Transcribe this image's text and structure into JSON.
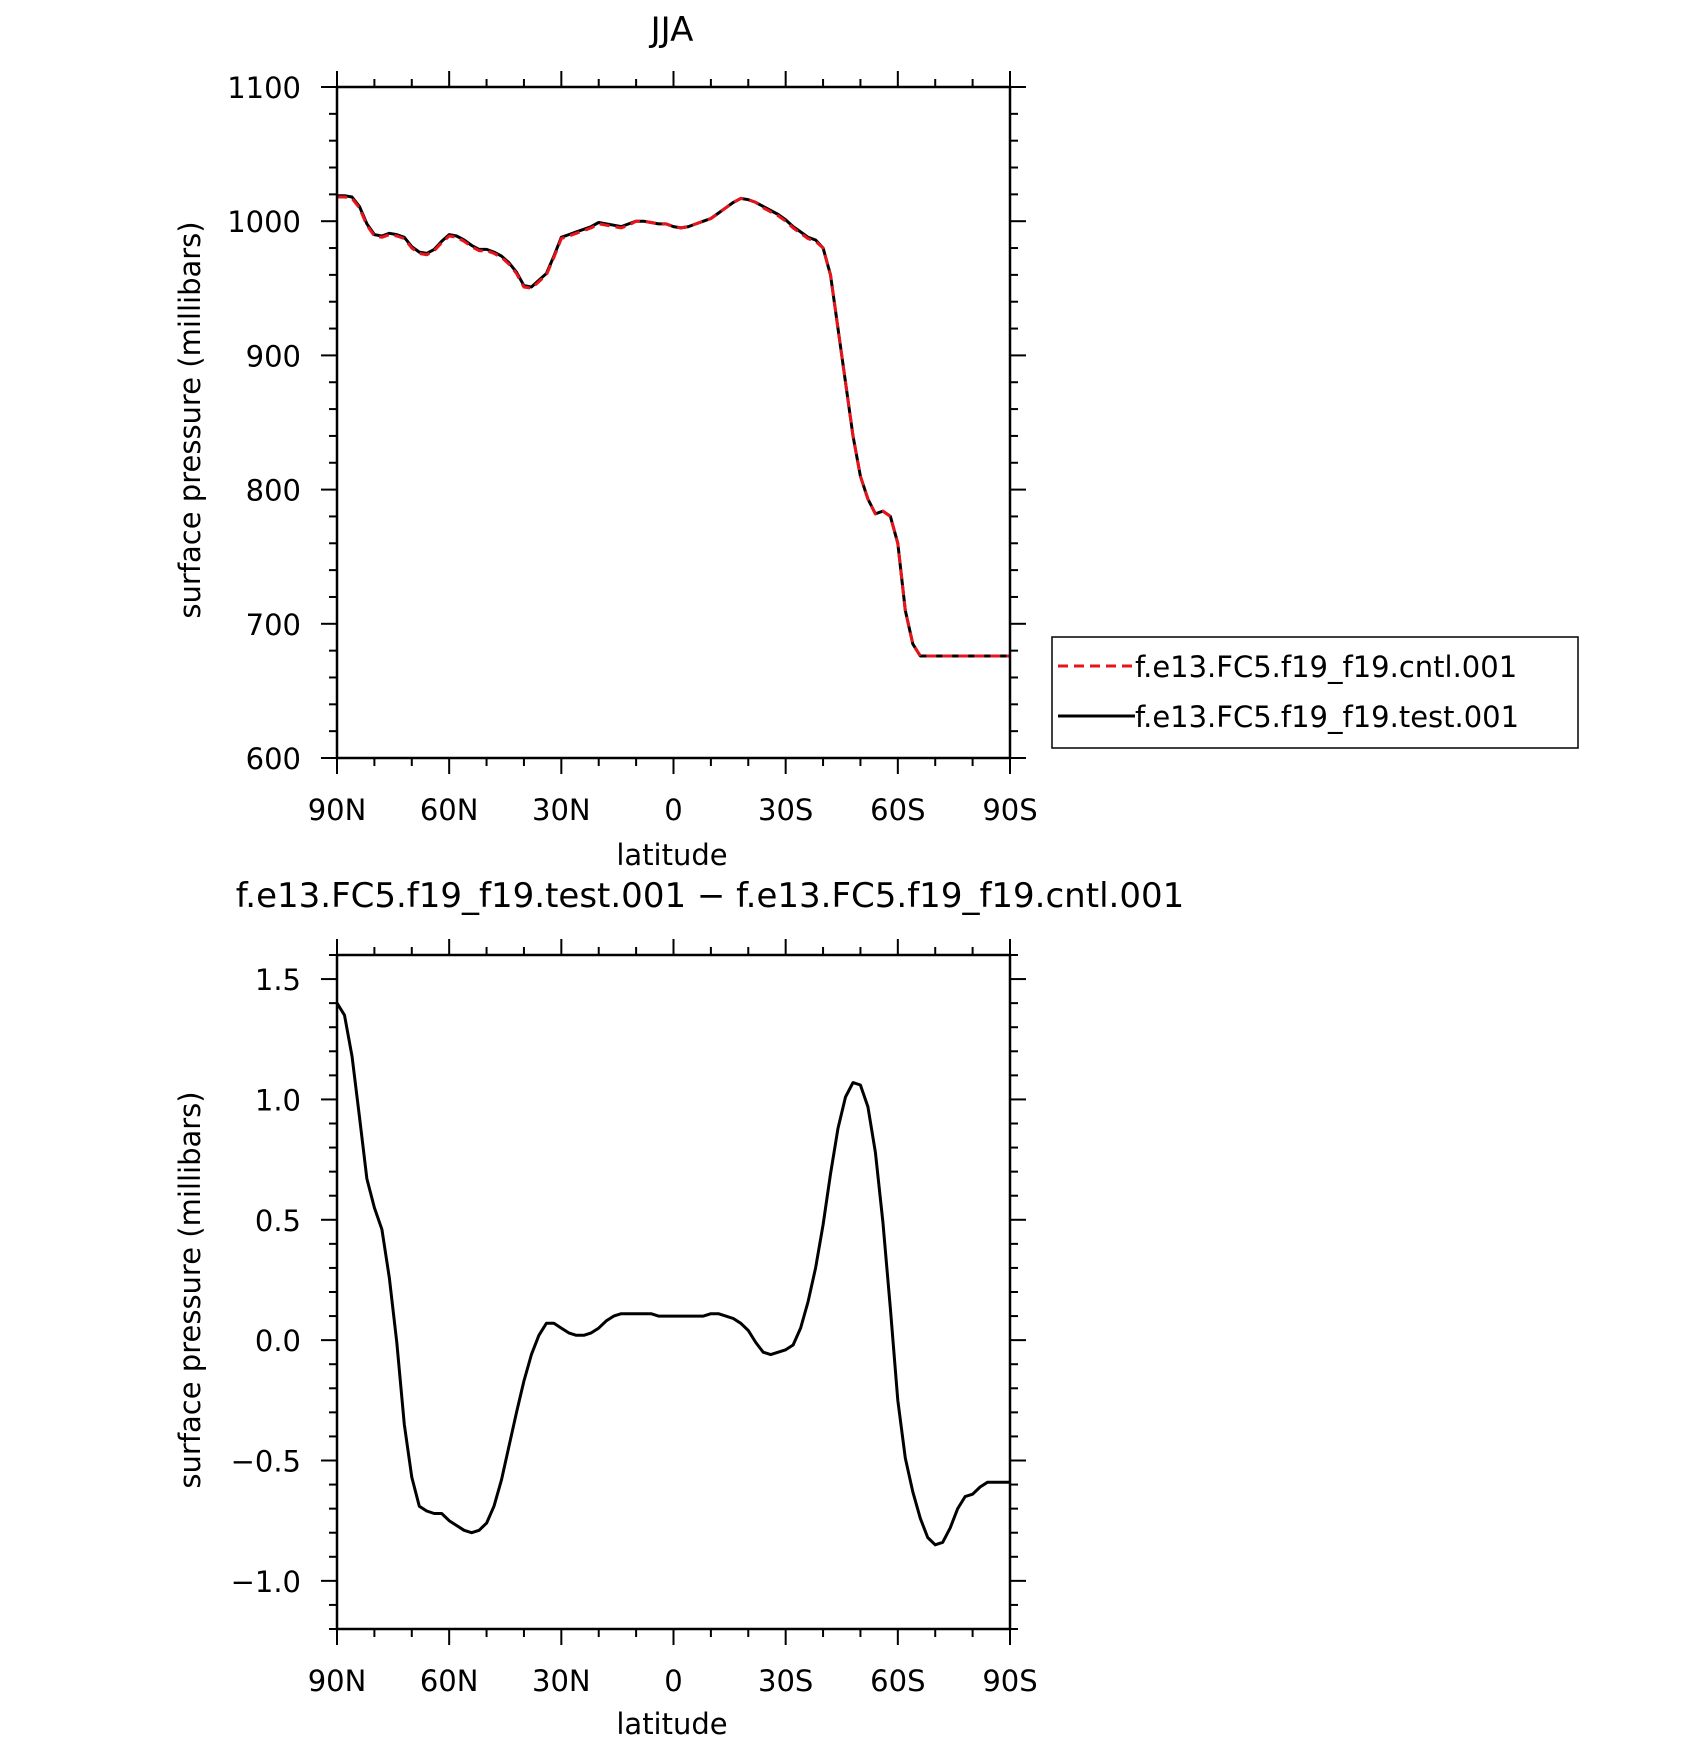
{
  "chart_data": [
    {
      "type": "line",
      "title": "JJA",
      "xlabel": "latitude",
      "ylabel": "surface pressure (millibars)",
      "xlim": [
        90,
        -90
      ],
      "ylim": [
        600,
        1100
      ],
      "x_tick_values": [
        90,
        60,
        30,
        0,
        -30,
        -60,
        -90
      ],
      "x_tick_labels": [
        "90N",
        "60N",
        "30N",
        "0",
        "30S",
        "60S",
        "90S"
      ],
      "y_tick_values": [
        600,
        700,
        800,
        900,
        1000,
        1100
      ],
      "y_tick_labels": [
        "600",
        "700",
        "800",
        "900",
        "1000",
        "1100"
      ],
      "legend_position": "right",
      "series": [
        {
          "name": "f.e13.FC5.f19_f19.cntl.001",
          "color": "#e8141c",
          "dash": "dashed",
          "x": [
            90,
            88,
            86,
            84,
            82,
            80,
            78,
            76,
            74,
            72,
            70,
            68,
            66,
            64,
            62,
            60,
            58,
            56,
            54,
            52,
            50,
            48,
            46,
            44,
            42,
            40,
            38,
            36,
            34,
            32,
            30,
            28,
            26,
            24,
            22,
            20,
            18,
            16,
            14,
            12,
            10,
            8,
            6,
            4,
            2,
            0,
            -2,
            -4,
            -6,
            -8,
            -10,
            -12,
            -14,
            -16,
            -18,
            -20,
            -22,
            -24,
            -26,
            -28,
            -30,
            -32,
            -34,
            -36,
            -38,
            -40,
            -42,
            -44,
            -46,
            -48,
            -50,
            -52,
            -54,
            -56,
            -58,
            -60,
            -62,
            -64,
            -66,
            -68,
            -70,
            -72,
            -74,
            -76,
            -78,
            -80,
            -82,
            -84,
            -86,
            -88,
            -90
          ],
          "values": [
            1018,
            1018,
            1017,
            1010,
            997,
            989,
            988,
            990,
            989,
            987,
            980,
            976,
            975,
            978,
            984,
            989,
            988,
            985,
            981,
            978,
            978,
            976,
            973,
            968,
            961,
            951,
            950,
            955,
            960,
            973,
            987,
            989,
            991,
            993,
            995,
            998,
            997,
            996,
            995,
            997,
            1000,
            1000,
            999,
            998,
            998,
            996,
            995,
            996,
            998,
            1000,
            1002,
            1006,
            1010,
            1014,
            1017,
            1016,
            1014,
            1010,
            1007,
            1004,
            1000,
            995,
            991,
            987,
            985,
            980,
            960,
            920,
            880,
            840,
            810,
            793,
            782,
            784,
            780,
            760,
            710,
            685,
            676,
            676,
            676,
            676,
            676,
            676,
            676,
            676,
            676,
            676,
            676,
            676,
            676
          ]
        },
        {
          "name": "f.e13.FC5.f19_f19.test.001",
          "color": "#000000",
          "dash": "solid",
          "x": [
            90,
            88,
            86,
            84,
            82,
            80,
            78,
            76,
            74,
            72,
            70,
            68,
            66,
            64,
            62,
            60,
            58,
            56,
            54,
            52,
            50,
            48,
            46,
            44,
            42,
            40,
            38,
            36,
            34,
            32,
            30,
            28,
            26,
            24,
            22,
            20,
            18,
            16,
            14,
            12,
            10,
            8,
            6,
            4,
            2,
            0,
            -2,
            -4,
            -6,
            -8,
            -10,
            -12,
            -14,
            -16,
            -18,
            -20,
            -22,
            -24,
            -26,
            -28,
            -30,
            -32,
            -34,
            -36,
            -38,
            -40,
            -42,
            -44,
            -46,
            -48,
            -50,
            -52,
            -54,
            -56,
            -58,
            -60,
            -62,
            -64,
            -66,
            -68,
            -70,
            -72,
            -74,
            -76,
            -78,
            -80,
            -82,
            -84,
            -86,
            -88,
            -90
          ],
          "values": [
            1019,
            1019,
            1018,
            1011,
            998,
            990,
            989,
            991,
            990,
            988,
            981,
            977,
            976,
            979,
            985,
            990,
            989,
            986,
            982,
            979,
            979,
            977,
            974,
            969,
            962,
            952,
            951,
            956,
            961,
            974,
            988,
            990,
            992,
            994,
            996,
            999,
            998,
            997,
            996,
            998,
            1000,
            1000,
            999,
            998,
            998,
            996,
            995,
            996,
            998,
            1000,
            1002,
            1006,
            1010,
            1014,
            1017,
            1016,
            1014,
            1011,
            1008,
            1005,
            1001,
            996,
            992,
            988,
            986,
            980,
            960,
            920,
            880,
            840,
            810,
            793,
            782,
            784,
            780,
            760,
            710,
            685,
            676,
            676,
            676,
            676,
            676,
            676,
            676,
            676,
            676,
            676,
            676,
            676,
            676
          ]
        }
      ]
    },
    {
      "type": "line",
      "title": "f.e13.FC5.f19_f19.test.001 − f.e13.FC5.f19_f19.cntl.001",
      "xlabel": "latitude",
      "ylabel": "surface pressure (millibars)",
      "xlim": [
        90,
        -90
      ],
      "ylim": [
        -1.2,
        1.6
      ],
      "x_tick_values": [
        90,
        60,
        30,
        0,
        -30,
        -60,
        -90
      ],
      "x_tick_labels": [
        "90N",
        "60N",
        "30N",
        "0",
        "30S",
        "60S",
        "90S"
      ],
      "y_tick_values": [
        -1.0,
        -0.5,
        0.0,
        0.5,
        1.0,
        1.5
      ],
      "y_tick_labels": [
        "−1.0",
        "−0.5",
        "0.0",
        "0.5",
        "1.0",
        "1.5"
      ],
      "series": [
        {
          "color": "#000000",
          "dash": "solid",
          "x": [
            90,
            88,
            86,
            84,
            82,
            80,
            78,
            76,
            74,
            72,
            70,
            68,
            66,
            64,
            62,
            60,
            58,
            56,
            54,
            52,
            50,
            48,
            46,
            44,
            42,
            40,
            38,
            36,
            34,
            32,
            30,
            28,
            26,
            24,
            22,
            20,
            18,
            16,
            14,
            12,
            10,
            8,
            6,
            4,
            2,
            0,
            -2,
            -4,
            -6,
            -8,
            -10,
            -12,
            -14,
            -16,
            -18,
            -20,
            -22,
            -24,
            -26,
            -28,
            -30,
            -32,
            -34,
            -36,
            -38,
            -40,
            -42,
            -44,
            -46,
            -48,
            -50,
            -52,
            -54,
            -56,
            -58,
            -60,
            -62,
            -64,
            -66,
            -68,
            -70,
            -72,
            -74,
            -76,
            -78,
            -80,
            -82,
            -84,
            -86,
            -88,
            -90
          ],
          "values": [
            1.4,
            1.35,
            1.18,
            0.93,
            0.67,
            0.55,
            0.46,
            0.26,
            -0.01,
            -0.35,
            -0.57,
            -0.69,
            -0.71,
            -0.72,
            -0.72,
            -0.75,
            -0.77,
            -0.79,
            -0.8,
            -0.79,
            -0.76,
            -0.69,
            -0.58,
            -0.44,
            -0.3,
            -0.17,
            -0.06,
            0.02,
            0.07,
            0.07,
            0.05,
            0.03,
            0.02,
            0.02,
            0.03,
            0.05,
            0.08,
            0.1,
            0.11,
            0.11,
            0.11,
            0.11,
            0.11,
            0.1,
            0.1,
            0.1,
            0.1,
            0.1,
            0.1,
            0.1,
            0.11,
            0.11,
            0.1,
            0.09,
            0.07,
            0.04,
            -0.01,
            -0.05,
            -0.06,
            -0.05,
            -0.04,
            -0.02,
            0.05,
            0.16,
            0.3,
            0.48,
            0.69,
            0.88,
            1.01,
            1.07,
            1.06,
            0.97,
            0.78,
            0.49,
            0.13,
            -0.25,
            -0.49,
            -0.63,
            -0.74,
            -0.82,
            -0.85,
            -0.84,
            -0.78,
            -0.7,
            -0.65,
            -0.64,
            -0.61,
            -0.59,
            -0.59,
            -0.59,
            -0.59
          ]
        }
      ]
    }
  ]
}
